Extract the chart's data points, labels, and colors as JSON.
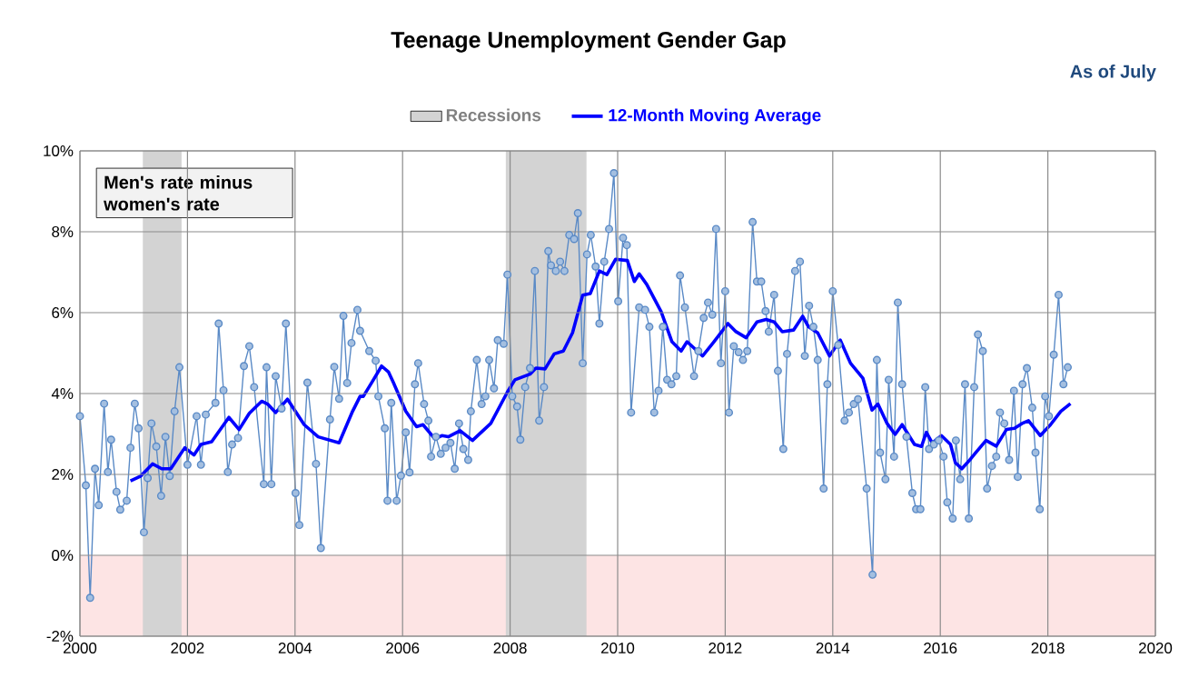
{
  "chart_data": {
    "type": "line",
    "title": "Teenage Unemployment Gender Gap",
    "annotations": [
      "As of July",
      "Men's rate minus women's rate"
    ],
    "xlim": [
      2000,
      2020
    ],
    "xticks": [
      2000,
      2002,
      2004,
      2006,
      2008,
      2010,
      2012,
      2014,
      2016,
      2018,
      2020
    ],
    "ylim": [
      -2,
      10
    ],
    "yticks": [
      {
        "value": -2,
        "label": "-2%"
      },
      {
        "value": 0,
        "label": "0%"
      },
      {
        "value": 2,
        "label": "2%"
      },
      {
        "value": 4,
        "label": "4%"
      },
      {
        "value": 6,
        "label": "6%"
      },
      {
        "value": 8,
        "label": "8%"
      },
      {
        "value": 10,
        "label": "10%"
      }
    ],
    "grid": true,
    "legend": "top",
    "bands": [
      {
        "axis": "y",
        "from": -2,
        "to": 0,
        "color": "#fde4e4"
      },
      {
        "axis": "x",
        "from": 2001.17,
        "to": 2001.89,
        "label": "Recessions",
        "color": "#d3d3d3"
      },
      {
        "axis": "x",
        "from": 2007.92,
        "to": 2009.42,
        "color": "#d3d3d3"
      }
    ],
    "series": [
      {
        "color": "#5a8ac6",
        "marker": "circle",
        "x": [
          2000.0,
          2000.11,
          2000.19,
          2000.28,
          2000.35,
          2000.45,
          2000.52,
          2000.58,
          2000.68,
          2000.75,
          2000.87,
          2000.94,
          2001.02,
          2001.09,
          2001.19,
          2001.26,
          2001.33,
          2001.42,
          2001.51,
          2001.59,
          2001.67,
          2001.76,
          2001.85,
          2002.0,
          2002.17,
          2002.25,
          2002.34,
          2002.52,
          2002.58,
          2002.67,
          2002.75,
          2002.83,
          2002.94,
          2003.05,
          2003.15,
          2003.24,
          2003.42,
          2003.47,
          2003.56,
          2003.64,
          2003.75,
          2003.83,
          2004.01,
          2004.08,
          2004.23,
          2004.39,
          2004.48,
          2004.65,
          2004.73,
          2004.82,
          2004.9,
          2004.97,
          2005.05,
          2005.16,
          2005.21,
          2005.38,
          2005.5,
          2005.55,
          2005.67,
          2005.72,
          2005.79,
          2005.89,
          2005.97,
          2006.06,
          2006.13,
          2006.23,
          2006.29,
          2006.4,
          2006.48,
          2006.53,
          2006.62,
          2006.71,
          2006.8,
          2006.89,
          2006.97,
          2007.05,
          2007.13,
          2007.22,
          2007.27,
          2007.38,
          2007.47,
          2007.54,
          2007.61,
          2007.7,
          2007.77,
          2007.88,
          2007.95,
          2008.04,
          2008.13,
          2008.19,
          2008.28,
          2008.37,
          2008.46,
          2008.54,
          2008.63,
          2008.71,
          2008.76,
          2008.85,
          2008.93,
          2009.01,
          2009.1,
          2009.19,
          2009.26,
          2009.35,
          2009.43,
          2009.5,
          2009.59,
          2009.66,
          2009.75,
          2009.84,
          2009.93,
          2010.01,
          2010.1,
          2010.17,
          2010.25,
          2010.4,
          2010.51,
          2010.59,
          2010.68,
          2010.76,
          2010.84,
          2010.92,
          2011.0,
          2011.09,
          2011.16,
          2011.25,
          2011.42,
          2011.5,
          2011.6,
          2011.68,
          2011.76,
          2011.83,
          2011.92,
          2012.0,
          2012.07,
          2012.16,
          2012.25,
          2012.33,
          2012.41,
          2012.51,
          2012.59,
          2012.67,
          2012.75,
          2012.81,
          2012.91,
          2012.98,
          2013.08,
          2013.15,
          2013.3,
          2013.39,
          2013.48,
          2013.56,
          2013.64,
          2013.72,
          2013.83,
          2013.9,
          2014.0,
          2014.1,
          2014.22,
          2014.3,
          2014.39,
          2014.47,
          2014.63,
          2014.74,
          2014.82,
          2014.88,
          2014.98,
          2015.04,
          2015.14,
          2015.21,
          2015.29,
          2015.37,
          2015.48,
          2015.55,
          2015.63,
          2015.72,
          2015.79,
          2015.88,
          2015.97,
          2016.06,
          2016.13,
          2016.23,
          2016.29,
          2016.37,
          2016.46,
          2016.53,
          2016.63,
          2016.7,
          2016.79,
          2016.87,
          2016.96,
          2017.04,
          2017.11,
          2017.19,
          2017.28,
          2017.37,
          2017.44,
          2017.53,
          2017.61,
          2017.71,
          2017.77,
          2017.85,
          2017.95,
          2018.02,
          2018.11,
          2018.2,
          2018.29,
          2018.37
        ],
        "values": [
          3.44,
          1.73,
          -1.05,
          2.14,
          1.24,
          3.75,
          2.06,
          2.86,
          1.57,
          1.13,
          1.35,
          2.66,
          3.75,
          3.14,
          0.57,
          1.91,
          3.26,
          2.69,
          1.47,
          2.93,
          1.96,
          3.56,
          4.65,
          2.24,
          3.44,
          2.24,
          3.48,
          3.77,
          5.73,
          4.08,
          2.06,
          2.74,
          2.9,
          4.68,
          5.17,
          4.16,
          1.76,
          4.65,
          1.76,
          4.43,
          3.63,
          5.73,
          1.54,
          0.75,
          4.27,
          2.26,
          0.18,
          3.36,
          4.66,
          3.87,
          5.92,
          4.26,
          5.25,
          6.07,
          5.55,
          5.05,
          4.81,
          3.93,
          3.14,
          1.35,
          3.77,
          1.35,
          1.97,
          3.04,
          2.05,
          4.23,
          4.75,
          3.74,
          3.33,
          2.44,
          2.93,
          2.51,
          2.66,
          2.78,
          2.14,
          3.26,
          2.63,
          2.36,
          3.56,
          4.83,
          3.74,
          3.93,
          4.83,
          4.13,
          5.32,
          5.23,
          6.94,
          3.93,
          3.68,
          2.86,
          4.16,
          4.63,
          7.03,
          3.33,
          4.16,
          7.52,
          7.17,
          7.03,
          7.26,
          7.03,
          7.92,
          7.82,
          8.46,
          4.75,
          7.44,
          7.92,
          7.14,
          5.73,
          7.26,
          8.07,
          9.45,
          6.28,
          7.85,
          7.67,
          3.53,
          6.13,
          6.07,
          5.65,
          3.53,
          4.07,
          5.65,
          4.34,
          4.23,
          4.43,
          6.92,
          6.13,
          4.43,
          5.05,
          5.87,
          6.25,
          5.95,
          8.07,
          4.75,
          6.53,
          3.53,
          5.17,
          5.02,
          4.83,
          5.05,
          8.24,
          6.77,
          6.77,
          6.04,
          5.53,
          6.44,
          4.56,
          2.63,
          4.98,
          7.03,
          7.26,
          4.93,
          6.17,
          5.65,
          4.83,
          1.65,
          4.23,
          6.53,
          5.2,
          3.33,
          3.53,
          3.74,
          3.86,
          1.65,
          -0.48,
          4.83,
          2.54,
          1.88,
          4.34,
          2.44,
          6.25,
          4.23,
          2.93,
          1.54,
          1.14,
          1.14,
          4.16,
          2.63,
          2.74,
          2.84,
          2.44,
          1.31,
          0.91,
          2.84,
          1.88,
          4.23,
          0.91,
          4.16,
          5.46,
          5.05,
          1.65,
          2.21,
          2.44,
          3.53,
          3.26,
          2.36,
          4.07,
          1.94,
          4.23,
          4.63,
          3.65,
          2.54,
          1.14,
          3.93,
          3.44,
          4.96,
          6.44,
          4.23,
          4.65
        ]
      },
      {
        "name": "12-Month Moving Average",
        "color": "#0000ff",
        "marker": "none",
        "x": [
          2000.94,
          2001.13,
          2001.35,
          2001.52,
          2001.69,
          2001.95,
          2002.12,
          2002.25,
          2002.45,
          2002.77,
          2002.96,
          2003.15,
          2003.38,
          2003.49,
          2003.64,
          2003.86,
          2004.17,
          2004.43,
          2004.82,
          2005.07,
          2005.21,
          2005.27,
          2005.44,
          2005.61,
          2005.74,
          2005.83,
          2006.06,
          2006.26,
          2006.38,
          2006.6,
          2006.73,
          2006.85,
          2007.07,
          2007.3,
          2007.64,
          2007.95,
          2008.09,
          2008.37,
          2008.48,
          2008.65,
          2008.82,
          2008.99,
          2009.16,
          2009.35,
          2009.49,
          2009.66,
          2009.8,
          2009.96,
          2010.18,
          2010.31,
          2010.4,
          2010.54,
          2010.81,
          2011.01,
          2011.18,
          2011.29,
          2011.58,
          2011.78,
          2012.05,
          2012.2,
          2012.39,
          2012.59,
          2012.76,
          2012.91,
          2013.06,
          2013.27,
          2013.44,
          2013.55,
          2013.72,
          2013.94,
          2014.14,
          2014.33,
          2014.56,
          2014.73,
          2014.84,
          2015.01,
          2015.16,
          2015.29,
          2015.52,
          2015.65,
          2015.74,
          2015.85,
          2016.02,
          2016.19,
          2016.28,
          2016.4,
          2016.53,
          2016.64,
          2016.85,
          2017.04,
          2017.23,
          2017.38,
          2017.52,
          2017.64,
          2017.86,
          2018.05,
          2018.24,
          2018.42
        ],
        "values": [
          1.84,
          1.96,
          2.26,
          2.14,
          2.14,
          2.66,
          2.48,
          2.74,
          2.81,
          3.41,
          3.11,
          3.51,
          3.81,
          3.74,
          3.53,
          3.86,
          3.23,
          2.93,
          2.78,
          3.56,
          3.93,
          3.93,
          4.3,
          4.68,
          4.53,
          4.27,
          3.56,
          3.18,
          3.23,
          2.88,
          2.96,
          2.93,
          3.08,
          2.84,
          3.26,
          4.04,
          4.34,
          4.48,
          4.63,
          4.61,
          4.98,
          5.05,
          5.5,
          6.43,
          6.47,
          7.03,
          6.94,
          7.32,
          7.29,
          6.77,
          6.96,
          6.7,
          6.02,
          5.28,
          5.05,
          5.28,
          4.93,
          5.26,
          5.73,
          5.53,
          5.38,
          5.77,
          5.83,
          5.77,
          5.53,
          5.57,
          5.91,
          5.65,
          5.5,
          4.93,
          5.32,
          4.75,
          4.38,
          3.59,
          3.74,
          3.26,
          2.99,
          3.23,
          2.74,
          2.69,
          3.04,
          2.78,
          2.96,
          2.74,
          2.29,
          2.14,
          2.33,
          2.51,
          2.84,
          2.7,
          3.11,
          3.14,
          3.26,
          3.33,
          2.96,
          3.23,
          3.56,
          3.75
        ]
      }
    ]
  }
}
